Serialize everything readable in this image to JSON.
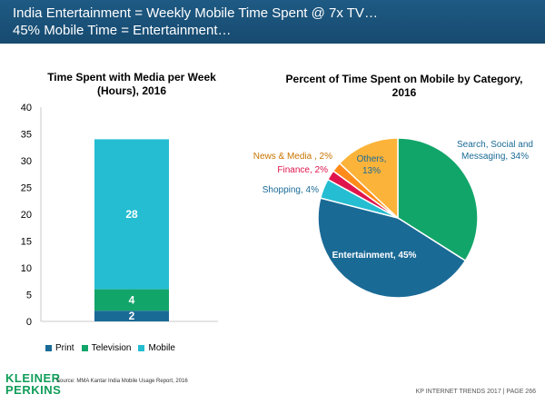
{
  "header": {
    "line1": "India Entertainment = Weekly Mobile Time Spent @ 7x TV…",
    "line2": "45% Mobile Time = Entertainment…"
  },
  "chart_data": [
    {
      "type": "bar",
      "stacked": true,
      "title": "Time Spent with Media per Week (Hours), 2016",
      "categories": [
        ""
      ],
      "series": [
        {
          "name": "Print",
          "values": [
            2
          ],
          "label": "2",
          "color": "#1a6a96"
        },
        {
          "name": "Television",
          "values": [
            4
          ],
          "label": "4",
          "color": "#12a56a"
        },
        {
          "name": "Mobile",
          "values": [
            28
          ],
          "label": "28",
          "color": "#25bdd1"
        }
      ],
      "ylim": [
        0,
        40
      ],
      "yticks": [
        "0",
        "5",
        "10",
        "15",
        "20",
        "25",
        "30",
        "35",
        "40"
      ],
      "legend": "bottom",
      "grid": false
    },
    {
      "type": "pie",
      "title": "Percent of Time Spent on Mobile by Category, 2016",
      "slices": [
        {
          "name": "Search, Social and Messaging, 34%",
          "value": 34,
          "color": "#12a56a"
        },
        {
          "name": "Entertainment, 45%",
          "value": 45,
          "color": "#1a6a96"
        },
        {
          "name": "Shopping, 4%",
          "value": 4,
          "color": "#25bdd1"
        },
        {
          "name": "Finance, 2%",
          "value": 2,
          "color": "#e0144c"
        },
        {
          "name": "News & Media , 2%",
          "value": 2,
          "color": "#ff8c1a"
        },
        {
          "name": "Others, 13%",
          "value": 13,
          "color": "#fbb33a"
        }
      ],
      "others_label": [
        "Others,",
        "13%"
      ]
    }
  ],
  "footer": {
    "logo_line1": "KLEINER",
    "logo_line2": "PERKINS",
    "source": "Source: MMA Kantar India Mobile Usage Report, 2016",
    "page": "KP INTERNET TRENDS 2017 | PAGE 266"
  }
}
